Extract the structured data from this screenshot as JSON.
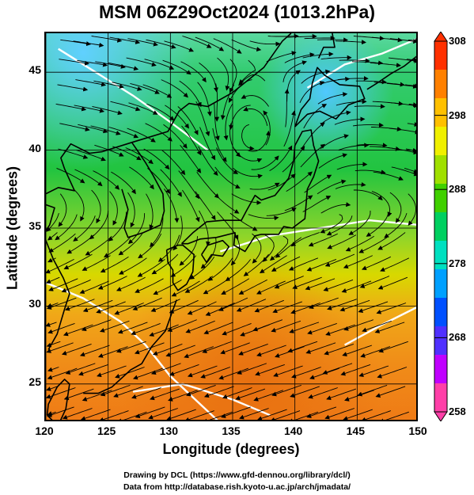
{
  "title": "MSM 06Z29Oct2024 (1013.2hPa)",
  "chart_data": {
    "type": "heatmap",
    "title": "MSM 06Z29Oct2024 (1013.2hPa)",
    "xlabel": "Longitude (degrees)",
    "ylabel": "Latitude  (degrees)",
    "xlim": [
      120,
      150
    ],
    "ylim": [
      22.5,
      47.5
    ],
    "x_ticks": [
      "120",
      "125",
      "130",
      "135",
      "140",
      "145",
      "150"
    ],
    "y_ticks": [
      "25",
      "30",
      "35",
      "40",
      "45"
    ],
    "grid": true,
    "colorbar": {
      "min": 258,
      "max": 308,
      "ticks": [
        "308",
        "298",
        "288",
        "278",
        "268",
        "258"
      ],
      "colors": [
        "#ff3fa8",
        "#c000ff",
        "#5030ff",
        "#0050ff",
        "#00a0ff",
        "#00e0c0",
        "#00d060",
        "#40d000",
        "#a0e000",
        "#f0f000",
        "#ffc000",
        "#ff8000",
        "#ff3000"
      ],
      "placement": "right"
    },
    "overlays": [
      "streamlines",
      "coastlines",
      "contour-lines"
    ]
  },
  "credits": {
    "line1": "Drawing by DCL (https://www.gfd-dennou.org/library/dcl/)",
    "line2": "Data from http://database.rish.kyoto-u.ac.jp/arch/jmadata/"
  }
}
